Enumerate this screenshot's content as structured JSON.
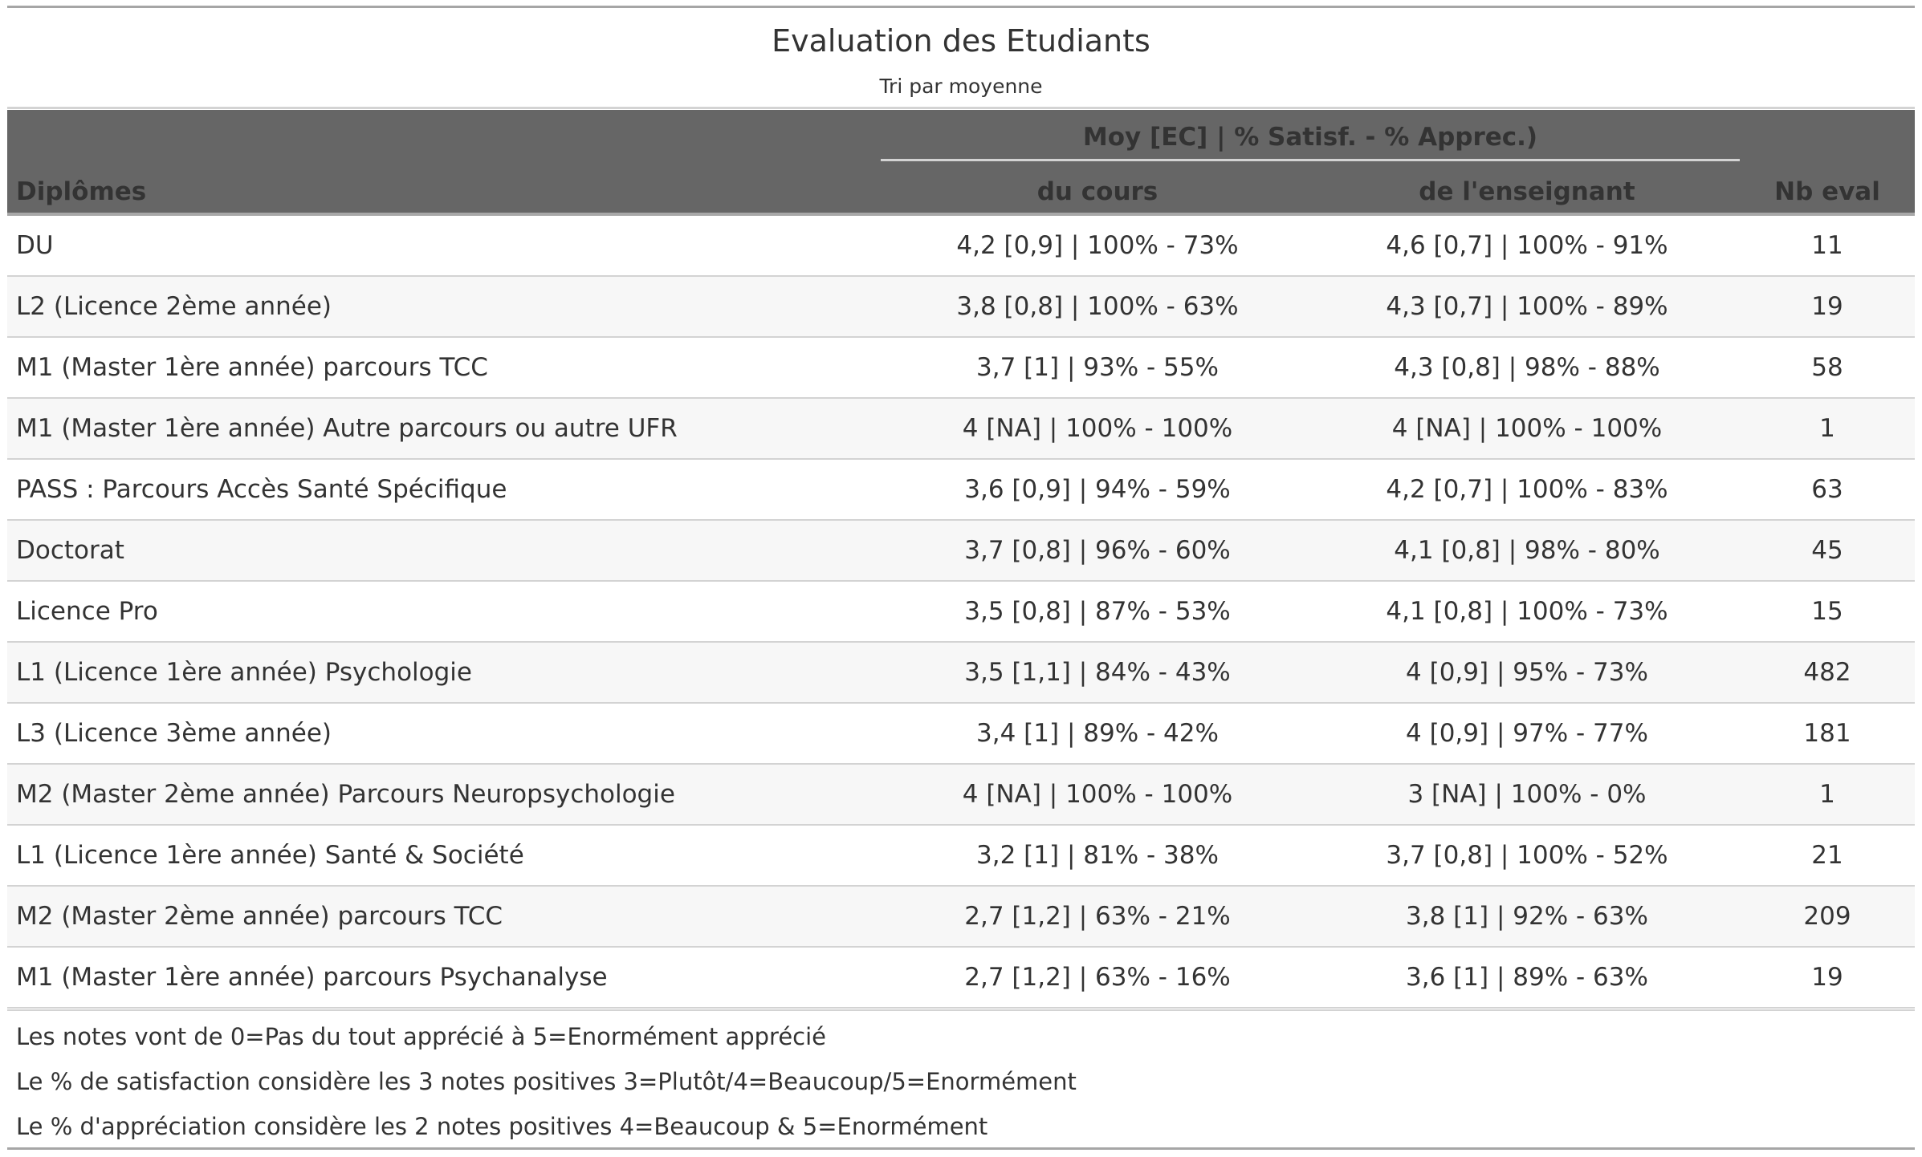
{
  "header": {
    "title": "Evaluation des Etudiants",
    "subtitle": "Tri par moyenne"
  },
  "table": {
    "spanner_label": "Moy [EC] | % Satisf. - % Apprec.)",
    "columns": {
      "diplome": "Diplômes",
      "cours": "du cours",
      "enseignant": "de l'enseignant",
      "nb_eval": "Nb eval"
    },
    "rows": [
      {
        "diplome": "DU",
        "cours": "4,2 [0,9] | 100% - 73%",
        "enseignant": "4,6 [0,7] | 100% - 91%",
        "nb_eval": "11"
      },
      {
        "diplome": "L2 (Licence 2ème année)",
        "cours": "3,8 [0,8] | 100% - 63%",
        "enseignant": "4,3 [0,7] | 100% - 89%",
        "nb_eval": "19"
      },
      {
        "diplome": "M1 (Master 1ère année) parcours TCC",
        "cours": "3,7 [1] | 93% - 55%",
        "enseignant": "4,3 [0,8] | 98% - 88%",
        "nb_eval": "58"
      },
      {
        "diplome": "M1 (Master 1ère année) Autre parcours ou autre UFR",
        "cours": "4 [NA] | 100% - 100%",
        "enseignant": "4 [NA] | 100% - 100%",
        "nb_eval": "1"
      },
      {
        "diplome": "PASS : Parcours Accès Santé Spécifique",
        "cours": "3,6 [0,9] | 94% - 59%",
        "enseignant": "4,2 [0,7] | 100% - 83%",
        "nb_eval": "63"
      },
      {
        "diplome": "Doctorat",
        "cours": "3,7 [0,8] | 96% - 60%",
        "enseignant": "4,1 [0,8] | 98% - 80%",
        "nb_eval": "45"
      },
      {
        "diplome": "Licence Pro",
        "cours": "3,5 [0,8] | 87% - 53%",
        "enseignant": "4,1 [0,8] | 100% - 73%",
        "nb_eval": "15"
      },
      {
        "diplome": "L1 (Licence 1ère année) Psychologie",
        "cours": "3,5 [1,1] | 84% - 43%",
        "enseignant": "4 [0,9] | 95% - 73%",
        "nb_eval": "482"
      },
      {
        "diplome": "L3 (Licence 3ème année)",
        "cours": "3,4 [1] | 89% - 42%",
        "enseignant": "4 [0,9] | 97% - 77%",
        "nb_eval": "181"
      },
      {
        "diplome": "M2 (Master 2ème année) Parcours Neuropsychologie",
        "cours": "4 [NA] | 100% - 100%",
        "enseignant": "3 [NA] | 100% - 0%",
        "nb_eval": "1"
      },
      {
        "diplome": "L1 (Licence 1ère année) Santé & Société",
        "cours": "3,2 [1] | 81% - 38%",
        "enseignant": "3,7 [0,8] | 100% - 52%",
        "nb_eval": "21"
      },
      {
        "diplome": "M2 (Master 2ème année) parcours TCC",
        "cours": "2,7 [1,2] | 63% - 21%",
        "enseignant": "3,8 [1] | 92% - 63%",
        "nb_eval": "209"
      },
      {
        "diplome": "M1 (Master 1ère année) parcours Psychanalyse",
        "cours": "2,7 [1,2] | 63% - 16%",
        "enseignant": "3,6 [1] | 89% - 63%",
        "nb_eval": "19"
      }
    ]
  },
  "footnotes": [
    "Les notes vont de 0=Pas du tout apprécié à 5=Enormément apprécié",
    "Le % de satisfaction considère les 3 notes positives 3=Plutôt/4=Beaucoup/5=Enormément",
    "Le % d'appréciation considère les 2 notes positives 4=Beaucoup & 5=Enormément"
  ]
}
